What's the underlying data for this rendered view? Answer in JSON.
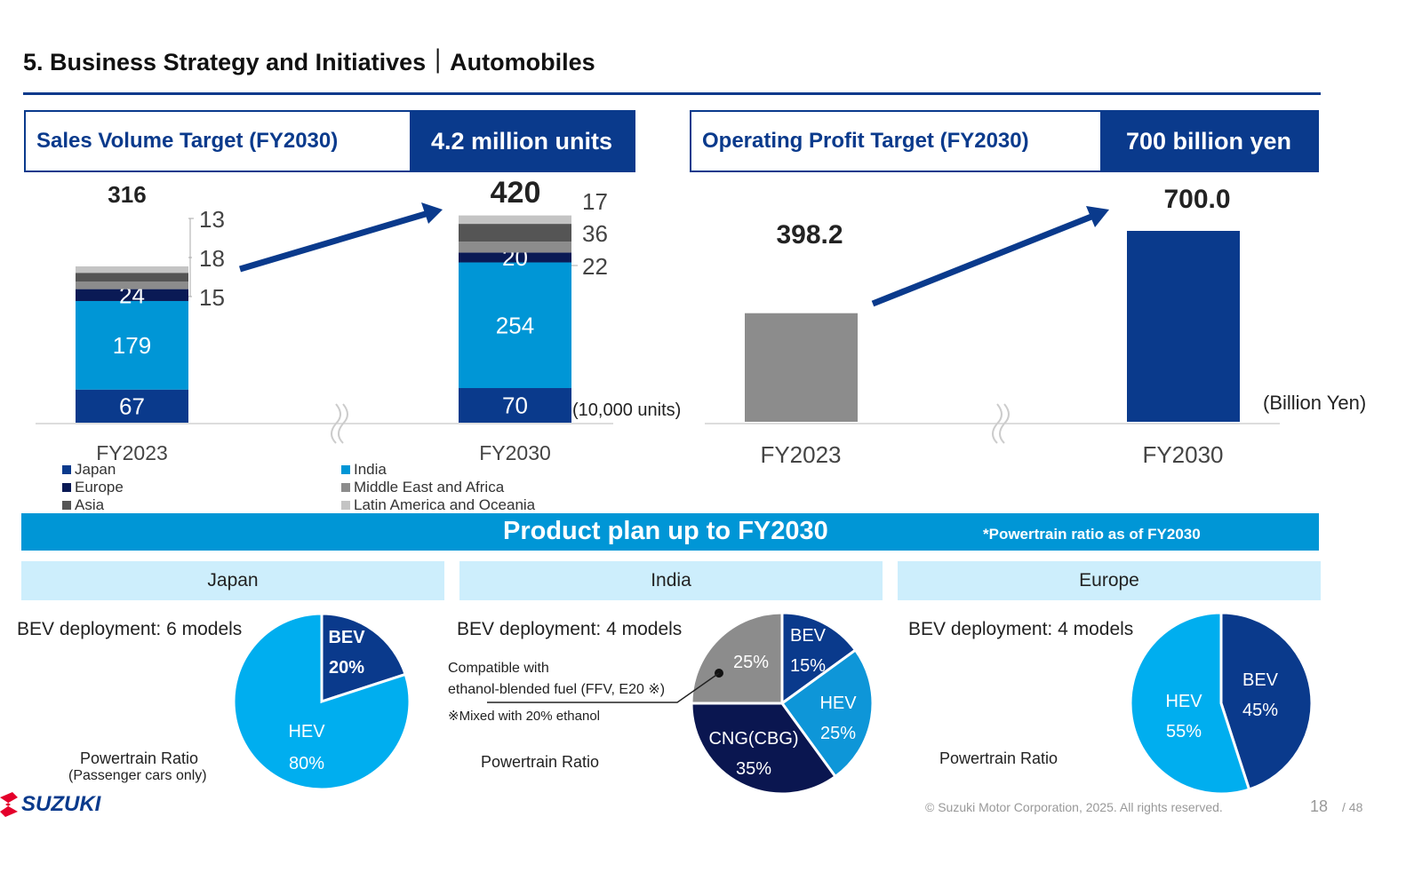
{
  "header": {
    "title": "5.   Business Strategy and Initiatives｜Automobiles"
  },
  "kpi_sales": {
    "label": "Sales Volume Target (FY2030)",
    "value": "4.2 million units"
  },
  "kpi_profit": {
    "label": "Operating Profit Target (FY2030)",
    "value": "700 billion yen"
  },
  "chart_data": [
    {
      "type": "bar",
      "stacked": true,
      "title": "Sales Volume",
      "unit_label": "(10,000 units)",
      "categories": [
        "FY2023",
        "FY2030"
      ],
      "totals": [
        "316",
        "420"
      ],
      "series": [
        {
          "name": "Japan",
          "color": "#0a3a8c",
          "values": [
            67,
            70
          ]
        },
        {
          "name": "India",
          "color": "#0096d6",
          "values": [
            179,
            254
          ]
        },
        {
          "name": "Europe",
          "color": "#0a1a55",
          "values": [
            24,
            20
          ]
        },
        {
          "name": "Middle East and Africa",
          "color": "#8c8c8c",
          "values": [
            15,
            22
          ]
        },
        {
          "name": "Asia",
          "color": "#555555",
          "values": [
            18,
            36
          ]
        },
        {
          "name": "Latin America and Oceania",
          "color": "#c4c4c4",
          "values": [
            13,
            17
          ]
        }
      ],
      "legend": [
        "Japan",
        "Europe",
        "Asia",
        "India",
        "Middle East and Africa",
        "Latin America and Oceania"
      ]
    },
    {
      "type": "bar",
      "title": "Operating Profit",
      "unit_label": "(Billion Yen)",
      "categories": [
        "FY2023",
        "FY2030"
      ],
      "values": [
        398.2,
        700.0
      ],
      "labels": [
        "398.2",
        "700.0"
      ],
      "colors": [
        "#8c8c8c",
        "#0a3a8c"
      ]
    },
    {
      "type": "pie",
      "title": "Japan",
      "slices": [
        {
          "label": "BEV",
          "value": 20,
          "text": "20%",
          "color": "#0a3a8c"
        },
        {
          "label": "HEV",
          "value": 80,
          "text": "80%",
          "color": "#00aeef"
        }
      ]
    },
    {
      "type": "pie",
      "title": "India",
      "slices": [
        {
          "label": "BEV",
          "value": 15,
          "text": "15%",
          "color": "#0a3a8c"
        },
        {
          "label": "HEV",
          "value": 25,
          "text": "25%",
          "color": "#0e96d8"
        },
        {
          "label": "CNG(CBG)",
          "value": 35,
          "text": "35%",
          "color": "#0a1650"
        },
        {
          "label": "",
          "value": 25,
          "text": "25%",
          "color": "#8c8c8c"
        }
      ]
    },
    {
      "type": "pie",
      "title": "Europe",
      "slices": [
        {
          "label": "BEV",
          "value": 45,
          "text": "45%",
          "color": "#0a3a8c"
        },
        {
          "label": "HEV",
          "value": 55,
          "text": "55%",
          "color": "#00aeef"
        }
      ]
    }
  ],
  "product_plan": {
    "title": "Product plan up to FY2030",
    "note": "*Powertrain ratio as of FY2030",
    "regions": [
      {
        "name": "Japan",
        "bev": "BEV deployment: 6 models",
        "ratio": "Powertrain Ratio",
        "sub": "(Passenger cars only)"
      },
      {
        "name": "India",
        "bev": "BEV deployment: 4 models",
        "ratio": "Powertrain Ratio",
        "callout1": "Compatible with",
        "callout2": "ethanol-blended fuel (FFV, E20 ※)",
        "footnote": "※Mixed with 20% ethanol"
      },
      {
        "name": "Europe",
        "bev": "BEV deployment: 4 models",
        "ratio": "Powertrain Ratio"
      }
    ]
  },
  "footer": {
    "logo": "SUZUKI",
    "copyright": "© Suzuki Motor Corporation, 2025. All rights reserved.",
    "page": "18",
    "total": "/ 48"
  }
}
